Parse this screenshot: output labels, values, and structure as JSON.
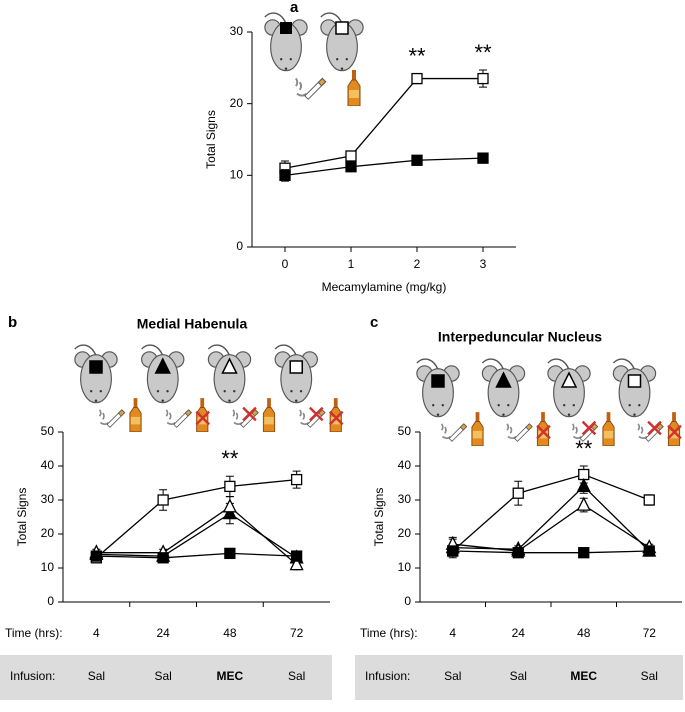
{
  "chart_data": [
    {
      "type": "line",
      "panel_label": "a",
      "xlabel": "Mecamylamine (mg/kg)",
      "ylabel": "Total Signs",
      "x": [
        0,
        1,
        2,
        3
      ],
      "xlim": [
        -0.5,
        3.5
      ],
      "xticks": [
        0,
        1,
        2,
        3
      ],
      "ylim": [
        0,
        30
      ],
      "yticks": [
        0,
        10,
        20,
        30
      ],
      "series": [
        {
          "marker": "square-open",
          "color": "#000000",
          "values": [
            11,
            12.7,
            23.5,
            23.5
          ],
          "errors": [
            1,
            0.5,
            0.7,
            1.2
          ]
        },
        {
          "marker": "square-filled",
          "color": "#000000",
          "values": [
            10,
            11.2,
            12.1,
            12.4
          ],
          "errors": [
            0.8,
            0.5,
            0.5,
            0.7
          ]
        }
      ],
      "annotations": [
        {
          "text": "**",
          "x": 2
        },
        {
          "text": "**",
          "x": 3
        }
      ]
    },
    {
      "type": "line",
      "panel_label": "b",
      "title": "Medial Habenula",
      "xlabel": "Time (hrs):",
      "ylabel": "Total  Signs",
      "categories": [
        "4",
        "24",
        "48",
        "72"
      ],
      "ylim": [
        0,
        50
      ],
      "yticks": [
        0,
        10,
        20,
        30,
        40,
        50
      ],
      "infusion": {
        "label": "Infusion:",
        "values": [
          "Sal",
          "Sal",
          "MEC",
          "Sal"
        ]
      },
      "series": [
        {
          "marker": "square-open",
          "color": "#000000",
          "values": [
            13,
            30,
            34,
            36
          ],
          "errors": [
            1.5,
            3,
            3,
            2.5
          ]
        },
        {
          "marker": "triangle-filled",
          "color": "#000000",
          "values": [
            14,
            13.5,
            26,
            13
          ],
          "errors": [
            1,
            1,
            3,
            1
          ]
        },
        {
          "marker": "triangle-open",
          "color": "#000000",
          "values": [
            14.5,
            14.5,
            28,
            11
          ],
          "errors": [
            1,
            1,
            3,
            1.5
          ]
        },
        {
          "marker": "square-filled",
          "color": "#000000",
          "values": [
            13.5,
            13,
            14.3,
            13.5
          ],
          "errors": [
            0.8,
            0.8,
            0.7,
            0.8
          ]
        }
      ],
      "annotations": [
        {
          "text": "**",
          "x": "48"
        }
      ]
    },
    {
      "type": "line",
      "panel_label": "c",
      "title": "Interpeduncular Nucleus",
      "xlabel": "Time (hrs):",
      "ylabel": "Total  Signs",
      "categories": [
        "4",
        "24",
        "48",
        "72"
      ],
      "ylim": [
        0,
        50
      ],
      "yticks": [
        0,
        10,
        20,
        30,
        40,
        50
      ],
      "infusion": {
        "label": "Infusion:",
        "values": [
          "Sal",
          "Sal",
          "MEC",
          "Sal"
        ]
      },
      "series": [
        {
          "marker": "square-open",
          "color": "#000000",
          "values": [
            15,
            32,
            37.5,
            30
          ],
          "errors": [
            1.5,
            3.5,
            2.5,
            1.5
          ]
        },
        {
          "marker": "triangle-filled",
          "color": "#000000",
          "values": [
            16,
            15.5,
            34,
            15
          ],
          "errors": [
            3,
            1,
            2,
            1
          ]
        },
        {
          "marker": "triangle-open",
          "color": "#000000",
          "values": [
            17,
            15,
            28.5,
            16
          ],
          "errors": [
            1.5,
            1,
            2,
            1
          ]
        },
        {
          "marker": "square-filled",
          "color": "#000000",
          "values": [
            15,
            14.5,
            14.5,
            15
          ],
          "errors": [
            1,
            1,
            0.8,
            1
          ]
        }
      ],
      "annotations": [
        {
          "text": "**",
          "x": "48"
        }
      ]
    }
  ]
}
